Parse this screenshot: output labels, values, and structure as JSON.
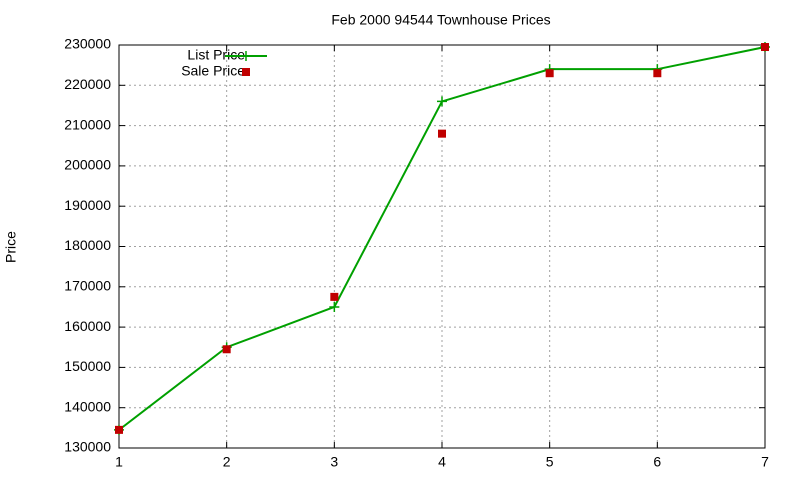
{
  "chart_data": {
    "type": "line",
    "title": "Feb 2000 94544 Townhouse Prices",
    "y_label": "Price",
    "x": [
      1,
      2,
      3,
      4,
      5,
      6,
      7
    ],
    "series": [
      {
        "name": "List Price",
        "color": "#00a000",
        "marker": "plus",
        "line": true,
        "values": [
          134500,
          155000,
          165000,
          216000,
          224000,
          224000,
          229500
        ]
      },
      {
        "name": "Sale Price",
        "color": "#c00000",
        "marker": "square",
        "line": false,
        "values": [
          134500,
          154500,
          167500,
          208000,
          223000,
          223000,
          229500
        ]
      }
    ],
    "xlim": [
      1,
      7
    ],
    "xticks": [
      1,
      2,
      3,
      4,
      5,
      6,
      7
    ],
    "ylim": [
      130000,
      230000
    ],
    "yticks": [
      130000,
      140000,
      150000,
      160000,
      170000,
      180000,
      190000,
      200000,
      210000,
      220000,
      230000
    ],
    "grid": true,
    "legend": "top-left"
  }
}
